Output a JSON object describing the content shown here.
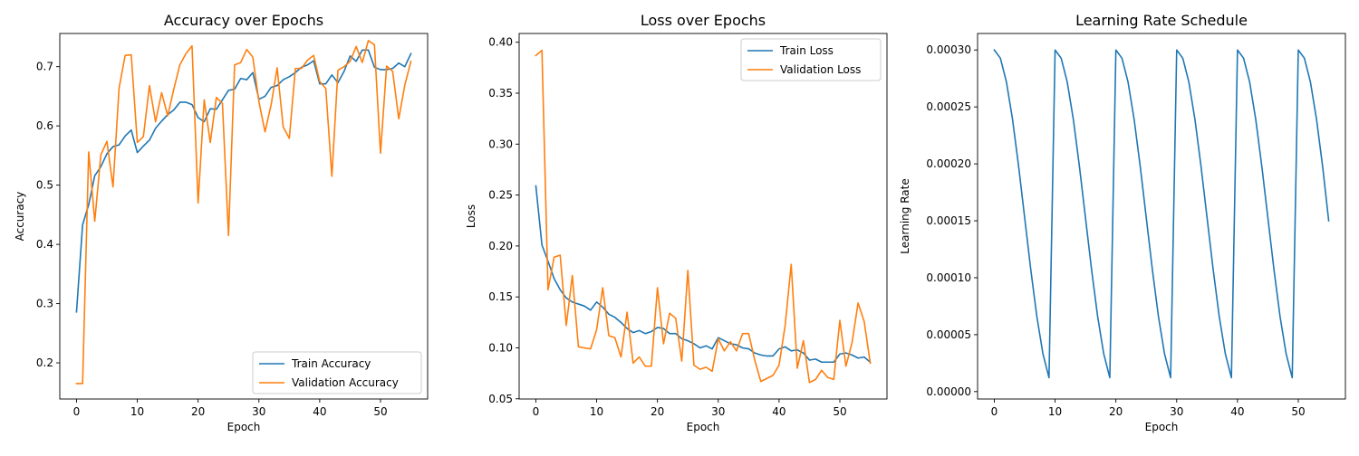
{
  "colors": {
    "train": "#1f77b4",
    "validation": "#ff7f0e"
  },
  "chart_data": [
    {
      "type": "line",
      "title": "Accuracy over Epochs",
      "xlabel": "Epoch",
      "ylabel": "Accuracy",
      "xlim": [
        -2.75,
        57.75
      ],
      "ylim": [
        0.139,
        0.756
      ],
      "xticks": [
        "0",
        "10",
        "20",
        "30",
        "40",
        "50"
      ],
      "yticks": [
        "0.2",
        "0.3",
        "0.4",
        "0.5",
        "0.6",
        "0.7"
      ],
      "grid": false,
      "legend": "lower right",
      "series": [
        {
          "name": "Train Accuracy",
          "color": "#1f77b4",
          "x": [
            0,
            1,
            2,
            3,
            4,
            5,
            6,
            7,
            8,
            9,
            10,
            11,
            12,
            13,
            14,
            15,
            16,
            17,
            18,
            19,
            20,
            21,
            22,
            23,
            24,
            25,
            26,
            27,
            28,
            29,
            30,
            31,
            32,
            33,
            34,
            35,
            36,
            37,
            38,
            39,
            40,
            41,
            42,
            43,
            44,
            45,
            46,
            47,
            48,
            49,
            50,
            51,
            52,
            53,
            54,
            55
          ],
          "values": [
            0.286,
            0.433,
            0.467,
            0.516,
            0.531,
            0.553,
            0.565,
            0.568,
            0.583,
            0.593,
            0.555,
            0.566,
            0.576,
            0.596,
            0.608,
            0.619,
            0.627,
            0.64,
            0.64,
            0.636,
            0.614,
            0.607,
            0.629,
            0.628,
            0.644,
            0.66,
            0.662,
            0.68,
            0.678,
            0.69,
            0.645,
            0.65,
            0.665,
            0.668,
            0.678,
            0.683,
            0.69,
            0.699,
            0.703,
            0.71,
            0.671,
            0.671,
            0.686,
            0.673,
            0.692,
            0.718,
            0.709,
            0.728,
            0.728,
            0.699,
            0.695,
            0.695,
            0.697,
            0.706,
            0.7,
            0.722
          ]
        },
        {
          "name": "Validation Accuracy",
          "color": "#ff7f0e",
          "x": [
            0,
            1,
            2,
            3,
            4,
            5,
            6,
            7,
            8,
            9,
            10,
            11,
            12,
            13,
            14,
            15,
            16,
            17,
            18,
            19,
            20,
            21,
            22,
            23,
            24,
            25,
            26,
            27,
            28,
            29,
            30,
            31,
            32,
            33,
            34,
            35,
            36,
            37,
            38,
            39,
            40,
            41,
            42,
            43,
            44,
            45,
            46,
            47,
            48,
            49,
            50,
            51,
            52,
            53,
            54,
            55
          ],
          "values": [
            0.165,
            0.165,
            0.556,
            0.439,
            0.551,
            0.574,
            0.497,
            0.664,
            0.719,
            0.72,
            0.572,
            0.582,
            0.668,
            0.607,
            0.656,
            0.617,
            0.662,
            0.703,
            0.722,
            0.735,
            0.47,
            0.644,
            0.572,
            0.648,
            0.638,
            0.415,
            0.703,
            0.707,
            0.729,
            0.716,
            0.641,
            0.59,
            0.635,
            0.698,
            0.598,
            0.579,
            0.697,
            0.697,
            0.711,
            0.719,
            0.675,
            0.663,
            0.515,
            0.694,
            0.7,
            0.709,
            0.734,
            0.707,
            0.744,
            0.737,
            0.554,
            0.701,
            0.692,
            0.612,
            0.669,
            0.709
          ]
        }
      ]
    },
    {
      "type": "line",
      "title": "Loss over Epochs",
      "xlabel": "Epoch",
      "ylabel": "Loss",
      "xlim": [
        -2.75,
        57.75
      ],
      "ylim": [
        0.0498,
        0.4086
      ],
      "xticks": [
        "0",
        "10",
        "20",
        "30",
        "40",
        "50"
      ],
      "yticks": [
        "0.05",
        "0.10",
        "0.15",
        "0.20",
        "0.25",
        "0.30",
        "0.35",
        "0.40"
      ],
      "grid": false,
      "legend": "upper right",
      "series": [
        {
          "name": "Train Loss",
          "color": "#1f77b4",
          "x": [
            0,
            1,
            2,
            3,
            4,
            5,
            6,
            7,
            8,
            9,
            10,
            11,
            12,
            13,
            14,
            15,
            16,
            17,
            18,
            19,
            20,
            21,
            22,
            23,
            24,
            25,
            26,
            27,
            28,
            29,
            30,
            31,
            32,
            33,
            34,
            35,
            36,
            37,
            38,
            39,
            40,
            41,
            42,
            43,
            44,
            45,
            46,
            47,
            48,
            49,
            50,
            51,
            52,
            53,
            54,
            55
          ],
          "values": [
            0.259,
            0.201,
            0.185,
            0.168,
            0.157,
            0.149,
            0.145,
            0.143,
            0.141,
            0.137,
            0.145,
            0.14,
            0.133,
            0.13,
            0.125,
            0.119,
            0.115,
            0.117,
            0.114,
            0.116,
            0.12,
            0.119,
            0.114,
            0.114,
            0.109,
            0.107,
            0.104,
            0.1,
            0.102,
            0.099,
            0.11,
            0.107,
            0.104,
            0.103,
            0.1,
            0.099,
            0.095,
            0.093,
            0.092,
            0.092,
            0.099,
            0.101,
            0.097,
            0.098,
            0.095,
            0.088,
            0.089,
            0.086,
            0.086,
            0.086,
            0.094,
            0.095,
            0.093,
            0.09,
            0.091,
            0.086
          ]
        },
        {
          "name": "Validation Loss",
          "color": "#ff7f0e",
          "x": [
            0,
            1,
            2,
            3,
            4,
            5,
            6,
            7,
            8,
            9,
            10,
            11,
            12,
            13,
            14,
            15,
            16,
            17,
            18,
            19,
            20,
            21,
            22,
            23,
            24,
            25,
            26,
            27,
            28,
            29,
            30,
            31,
            32,
            33,
            34,
            35,
            36,
            37,
            38,
            39,
            40,
            41,
            42,
            43,
            44,
            45,
            46,
            47,
            48,
            49,
            50,
            51,
            52,
            53,
            54,
            55
          ],
          "values": [
            0.387,
            0.392,
            0.157,
            0.189,
            0.191,
            0.122,
            0.171,
            0.101,
            0.1,
            0.099,
            0.118,
            0.159,
            0.112,
            0.11,
            0.091,
            0.135,
            0.085,
            0.091,
            0.082,
            0.082,
            0.159,
            0.104,
            0.134,
            0.129,
            0.087,
            0.176,
            0.083,
            0.079,
            0.081,
            0.077,
            0.109,
            0.097,
            0.106,
            0.097,
            0.114,
            0.114,
            0.088,
            0.067,
            0.07,
            0.073,
            0.083,
            0.122,
            0.182,
            0.08,
            0.107,
            0.066,
            0.069,
            0.078,
            0.071,
            0.069,
            0.127,
            0.082,
            0.105,
            0.144,
            0.126,
            0.085
          ]
        }
      ]
    },
    {
      "type": "line",
      "title": "Learning Rate Schedule",
      "xlabel": "Epoch",
      "ylabel": "Learning Rate",
      "xlim": [
        -2.75,
        57.75
      ],
      "ylim": [
        -6.5e-06,
        0.0003145
      ],
      "xticks": [
        "0",
        "10",
        "20",
        "30",
        "40",
        "50"
      ],
      "yticks": [
        "0.00000",
        "0.00005",
        "0.00010",
        "0.00015",
        "0.00020",
        "0.00025",
        "0.00030"
      ],
      "grid": false,
      "legend": "none",
      "series": [
        {
          "color": "#1f77b4",
          "x": [
            0,
            1,
            2,
            3,
            4,
            5,
            6,
            7,
            8,
            9,
            10,
            11,
            12,
            13,
            14,
            15,
            16,
            17,
            18,
            19,
            20,
            21,
            22,
            23,
            24,
            25,
            26,
            27,
            28,
            29,
            30,
            31,
            32,
            33,
            34,
            35,
            36,
            37,
            38,
            39,
            40,
            41,
            42,
            43,
            44,
            45,
            46,
            47,
            48,
            49,
            50,
            51,
            52,
            53,
            54,
            55
          ],
          "values": [
            0.0003,
            0.0002928,
            0.0002718,
            0.0002391,
            0.0001979,
            0.0001525,
            0.0001071,
            6.59e-05,
            3.32e-05,
            1.22e-05,
            0.0003,
            0.0002928,
            0.0002718,
            0.0002391,
            0.0001979,
            0.0001525,
            0.0001071,
            6.59e-05,
            3.32e-05,
            1.22e-05,
            0.0003,
            0.0002928,
            0.0002718,
            0.0002391,
            0.0001979,
            0.0001525,
            0.0001071,
            6.59e-05,
            3.32e-05,
            1.22e-05,
            0.0003,
            0.0002928,
            0.0002718,
            0.0002391,
            0.0001979,
            0.0001525,
            0.0001071,
            6.59e-05,
            3.32e-05,
            1.22e-05,
            0.0003,
            0.0002928,
            0.0002718,
            0.0002391,
            0.0001979,
            0.0001525,
            0.0001071,
            6.59e-05,
            3.32e-05,
            1.22e-05,
            0.0003,
            0.0002928,
            0.0002718,
            0.0002391,
            0.0001979,
            0.00015
          ]
        }
      ]
    }
  ]
}
